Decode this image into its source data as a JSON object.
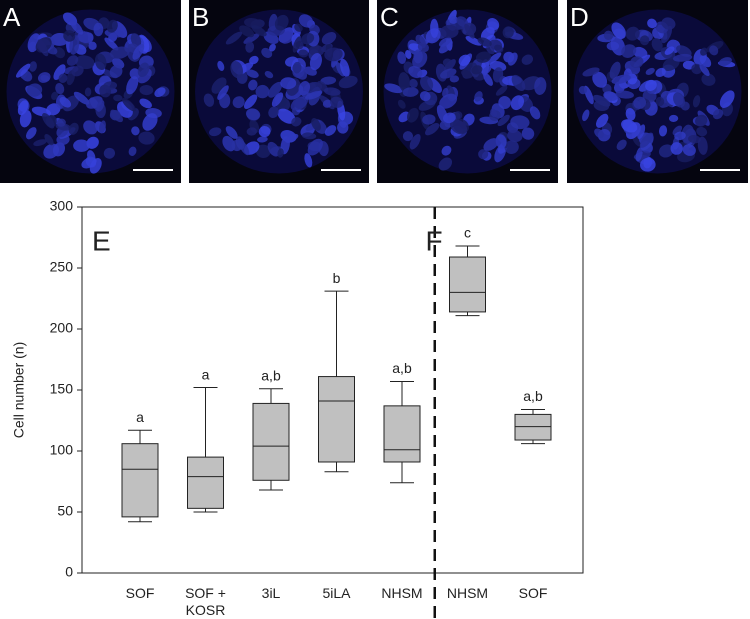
{
  "panels": [
    {
      "label": "A"
    },
    {
      "label": "B"
    },
    {
      "label": "C"
    },
    {
      "label": "D"
    }
  ],
  "chart_data": {
    "type": "box",
    "y_label": "Cell number (n)",
    "ylim": [
      0,
      300
    ],
    "yticks": [
      0,
      50,
      100,
      150,
      200,
      250,
      300
    ],
    "color": "#c0c0c0",
    "groups": [
      {
        "label": "E",
        "categories": [
          "SOF",
          "SOF + KOSR",
          "3iL",
          "5iLA",
          "NHSM"
        ],
        "boxes": [
          {
            "min": 42,
            "q1": 46,
            "median": 85,
            "q3": 106,
            "max": 117
          },
          {
            "min": 50,
            "q1": 53,
            "median": 79,
            "q3": 95,
            "max": 152
          },
          {
            "min": 68,
            "q1": 76,
            "median": 104,
            "q3": 139,
            "max": 151
          },
          {
            "min": 83,
            "q1": 91,
            "median": 141,
            "q3": 161,
            "max": 231
          },
          {
            "min": 74,
            "q1": 91,
            "median": 101,
            "q3": 137,
            "max": 157
          }
        ],
        "annotations": [
          "a",
          "a",
          "a,b",
          "b",
          "a,b"
        ]
      },
      {
        "label": "F",
        "categories": [
          "NHSM",
          "SOF"
        ],
        "boxes": [
          {
            "min": 211,
            "q1": 214,
            "median": 230,
            "q3": 259,
            "max": 268
          },
          {
            "min": 106,
            "q1": 109,
            "median": 120,
            "q3": 130,
            "max": 134
          }
        ],
        "annotations": [
          "c",
          "a,b"
        ]
      }
    ]
  }
}
